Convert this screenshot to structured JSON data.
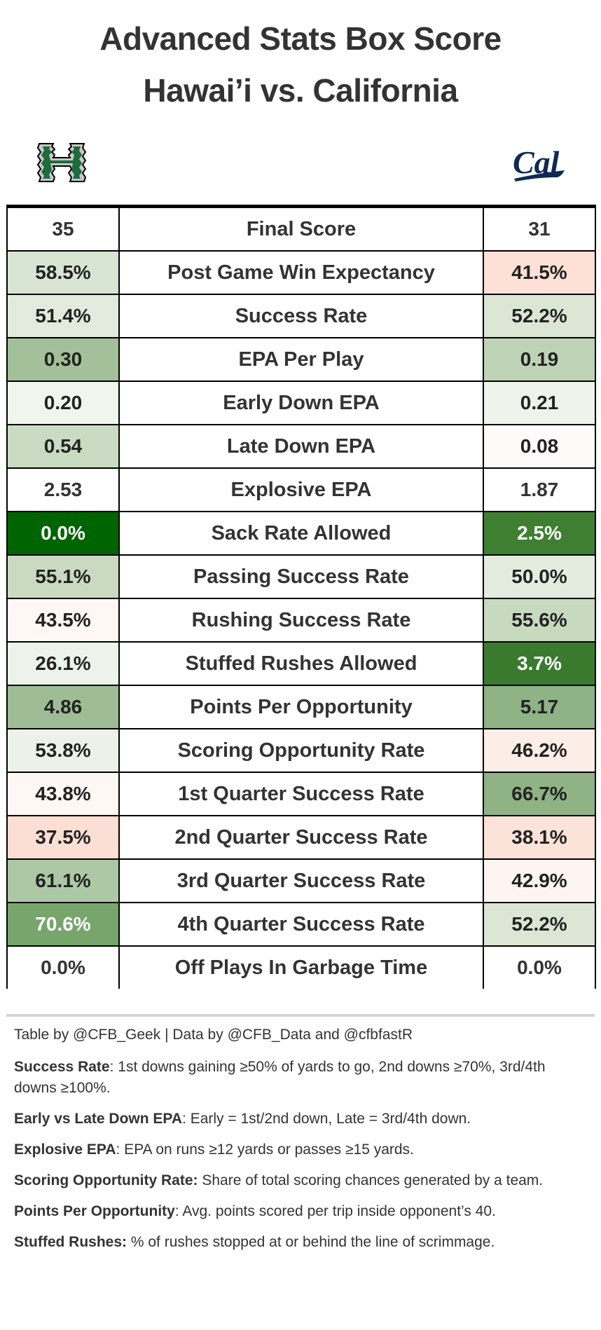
{
  "header": {
    "title_line1": "Advanced Stats Box Score",
    "title_line2": "Hawai’i vs. California"
  },
  "teams": {
    "home": {
      "name": "Hawai’i",
      "logo": "hawaii-h-logo",
      "color": "#1e6b3c"
    },
    "away": {
      "name": "California",
      "logo": "cal-script-logo",
      "color": "#0f2a52"
    }
  },
  "table": {
    "rows": [
      {
        "metric": "Final Score",
        "home": "35",
        "away": "31",
        "home_bg": "#ffffff",
        "away_bg": "#ffffff",
        "home_fg": "#333333",
        "away_fg": "#333333"
      },
      {
        "metric": "Post Game Win Expectancy",
        "home": "58.5%",
        "away": "41.5%",
        "home_bg": "#d9e5d3",
        "away_bg": "#fde0d6",
        "home_fg": "#222222",
        "away_fg": "#222222"
      },
      {
        "metric": "Success Rate",
        "home": "51.4%",
        "away": "52.2%",
        "home_bg": "#e2ebdd",
        "away_bg": "#dbe6d5",
        "home_fg": "#222222",
        "away_fg": "#222222"
      },
      {
        "metric": "EPA Per Play",
        "home": "0.30",
        "away": "0.19",
        "home_bg": "#a2c099",
        "away_bg": "#bed3b6",
        "home_fg": "#222222",
        "away_fg": "#222222"
      },
      {
        "metric": "Early Down EPA",
        "home": "0.20",
        "away": "0.21",
        "home_bg": "#f0f5ee",
        "away_bg": "#eef3eb",
        "home_fg": "#222222",
        "away_fg": "#222222"
      },
      {
        "metric": "Late Down EPA",
        "home": "0.54",
        "away": "0.08",
        "home_bg": "#cadbc3",
        "away_bg": "#fefafa",
        "home_fg": "#222222",
        "away_fg": "#222222"
      },
      {
        "metric": "Explosive EPA",
        "home": "2.53",
        "away": "1.87",
        "home_bg": "#ffffff",
        "away_bg": "#ffffff",
        "home_fg": "#333333",
        "away_fg": "#333333"
      },
      {
        "metric": "Sack Rate Allowed",
        "home": "0.0%",
        "away": "2.5%",
        "home_bg": "#006400",
        "away_bg": "#3e7f32",
        "home_fg": "#ffffff",
        "away_fg": "#ffffff"
      },
      {
        "metric": "Passing Success Rate",
        "home": "55.1%",
        "away": "50.0%",
        "home_bg": "#c9dac1",
        "away_bg": "#e4ece0",
        "home_fg": "#222222",
        "away_fg": "#222222"
      },
      {
        "metric": "Rushing Success Rate",
        "home": "43.5%",
        "away": "55.6%",
        "home_bg": "#fef7f4",
        "away_bg": "#c7d9bf",
        "home_fg": "#222222",
        "away_fg": "#222222"
      },
      {
        "metric": "Stuffed Rushes Allowed",
        "home": "26.1%",
        "away": "3.7%",
        "home_bg": "#edf3ea",
        "away_bg": "#3a7a2e",
        "home_fg": "#222222",
        "away_fg": "#ffffff"
      },
      {
        "metric": "Points Per Opportunity",
        "home": "4.86",
        "away": "5.17",
        "home_bg": "#9fbd95",
        "away_bg": "#8fb384",
        "home_fg": "#222222",
        "away_fg": "#222222"
      },
      {
        "metric": "Scoring Opportunity Rate",
        "home": "53.8%",
        "away": "46.2%",
        "home_bg": "#ecf2e9",
        "away_bg": "#fdede7",
        "home_fg": "#222222",
        "away_fg": "#222222"
      },
      {
        "metric": "1st Quarter Success Rate",
        "home": "43.8%",
        "away": "66.7%",
        "home_bg": "#fef7f4",
        "away_bg": "#8fb384",
        "home_fg": "#222222",
        "away_fg": "#222222"
      },
      {
        "metric": "2nd Quarter Success Rate",
        "home": "37.5%",
        "away": "38.1%",
        "home_bg": "#fcdfd4",
        "away_bg": "#fce3d9",
        "home_fg": "#222222",
        "away_fg": "#222222"
      },
      {
        "metric": "3rd Quarter Success Rate",
        "home": "61.1%",
        "away": "42.9%",
        "home_bg": "#adc8a4",
        "away_bg": "#fef5f2",
        "home_fg": "#222222",
        "away_fg": "#222222"
      },
      {
        "metric": "4th Quarter Success Rate",
        "home": "70.6%",
        "away": "52.2%",
        "home_bg": "#78a56c",
        "away_bg": "#dbe6d5",
        "home_fg": "#ffffff",
        "away_fg": "#222222"
      },
      {
        "metric": "Off Plays In Garbage Time",
        "home": "0.0%",
        "away": "0.0%",
        "home_bg": "#ffffff",
        "away_bg": "#ffffff",
        "home_fg": "#333333",
        "away_fg": "#333333"
      }
    ]
  },
  "footer": {
    "credit": "Table by @CFB_Geek | Data by @CFB_Data and @cfbfastR",
    "notes": [
      {
        "term": "Success Rate",
        "definition": ": 1st downs gaining ≥50% of yards to go, 2nd downs ≥70%, 3rd/4th downs ≥100%."
      },
      {
        "term": "Early vs Late Down EPA",
        "definition": ": Early = 1st/2nd down, Late = 3rd/4th down."
      },
      {
        "term": "Explosive EPA",
        "definition": ": EPA on runs ≥12 yards or passes ≥15 yards."
      },
      {
        "term": "Scoring Opportunity Rate:",
        "definition": " Share of total scoring chances generated by a team."
      },
      {
        "term": "Points Per Opportunity",
        "definition": ": Avg. points scored per trip inside opponent’s 40."
      },
      {
        "term": "Stuffed Rushes:",
        "definition": " % of rushes stopped at or behind the line of scrimmage."
      }
    ]
  }
}
